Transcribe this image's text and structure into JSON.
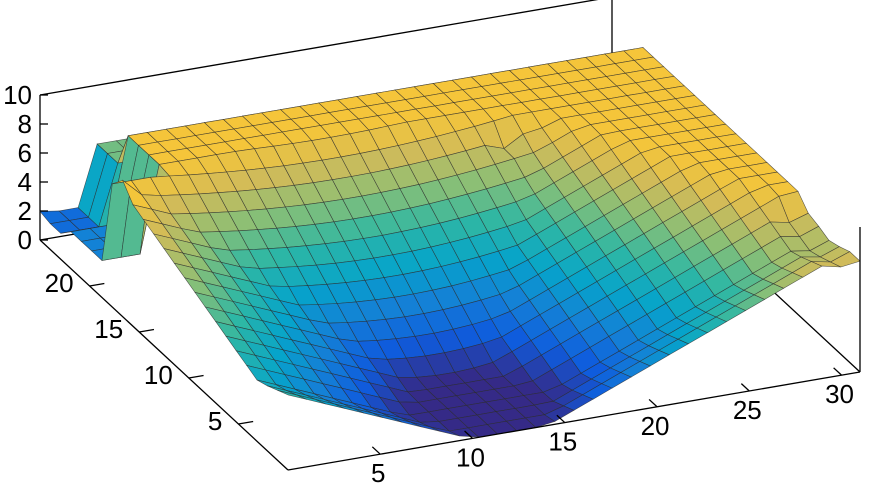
{
  "chart_data": {
    "type": "surface3d",
    "title": "",
    "xlabel": "",
    "ylabel": "",
    "zlabel": "",
    "colormap": "parula",
    "grid": "off",
    "legend": "none",
    "x_ticks": [
      "5",
      "10",
      "15",
      "20",
      "25",
      "30"
    ],
    "y_ticks": [
      "5",
      "10",
      "15",
      "20"
    ],
    "z_ticks": [
      "0",
      "2",
      "4",
      "6",
      "8",
      "10"
    ],
    "xlim": [
      0,
      31
    ],
    "ylim": [
      0,
      25
    ],
    "zlim": [
      0,
      10
    ],
    "x_grid_count": 31,
    "y_grid_count": 25,
    "z_description": "bowl-shaped pit with minimum near (x=12, y=3); surface rises to a jagged plateau of about 8–10 along the back and sides",
    "pit_center": {
      "x": 12,
      "y": 3
    },
    "plateau_height": 8.5,
    "colormap_stops": [
      "#352a87",
      "#0f5cdd",
      "#1481d6",
      "#06a4ca",
      "#2eb7a4",
      "#87bf77",
      "#d1bb59",
      "#fec832",
      "#f9fb0e"
    ]
  }
}
